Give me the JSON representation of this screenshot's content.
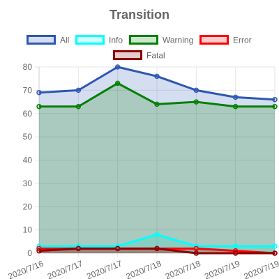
{
  "chart_data": {
    "type": "line",
    "title": "Transition",
    "x": [
      "2020/7/16",
      "2020/7/17",
      "2020/7/17",
      "2020/7/18",
      "2020/7/18",
      "2020/7/19",
      "2020/7/19"
    ],
    "ylim": [
      0,
      80
    ],
    "y_ticks": [
      0,
      10,
      20,
      30,
      40,
      50,
      60,
      70,
      80
    ],
    "grid": true,
    "legend_position": "top",
    "series": [
      {
        "name": "All",
        "values": [
          69,
          70,
          80,
          76,
          70,
          67,
          66
        ],
        "color": "#2e57b3",
        "fill": "rgba(46,87,179,0.2)"
      },
      {
        "name": "Info",
        "values": [
          3,
          3,
          3,
          8,
          3,
          3,
          3
        ],
        "color": "#00ffff",
        "fill": "rgba(0,255,255,0.2)"
      },
      {
        "name": "Warning",
        "values": [
          63,
          63,
          73,
          64,
          65,
          63,
          63
        ],
        "color": "#008000",
        "fill": "rgba(0,128,0,0.2)"
      },
      {
        "name": "Error",
        "values": [
          2,
          2,
          2,
          2,
          2,
          1,
          0
        ],
        "color": "#ff0000",
        "fill": "rgba(255,0,0,0.2)"
      },
      {
        "name": "Fatal",
        "values": [
          1,
          2,
          2,
          2,
          0,
          0,
          0
        ],
        "color": "#8b0000",
        "fill": "rgba(139,0,0,0.2)"
      }
    ]
  }
}
